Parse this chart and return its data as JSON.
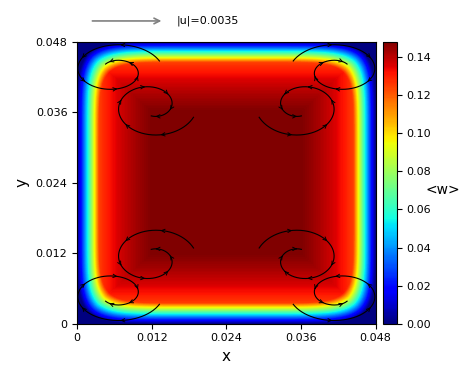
{
  "xmin": 0.0,
  "xmax": 0.048,
  "ymin": 0.0,
  "ymax": 0.048,
  "vmin": 0.0,
  "vmax": 0.148,
  "colorbar_ticks": [
    0.0,
    0.02,
    0.04,
    0.06,
    0.08,
    0.1,
    0.12,
    0.14
  ],
  "colorbar_label": "<w>",
  "xlabel": "x",
  "ylabel": "y",
  "reference_arrow_label": "|u|=0.0035",
  "xticks": [
    0,
    0.012,
    0.024,
    0.036,
    0.048
  ],
  "yticks": [
    0,
    0.012,
    0.024,
    0.036,
    0.048
  ],
  "figsize": [
    4.74,
    3.79
  ],
  "dpi": 100,
  "field_power": 8,
  "field_decay": 2.5,
  "wall_layer": 0.007
}
